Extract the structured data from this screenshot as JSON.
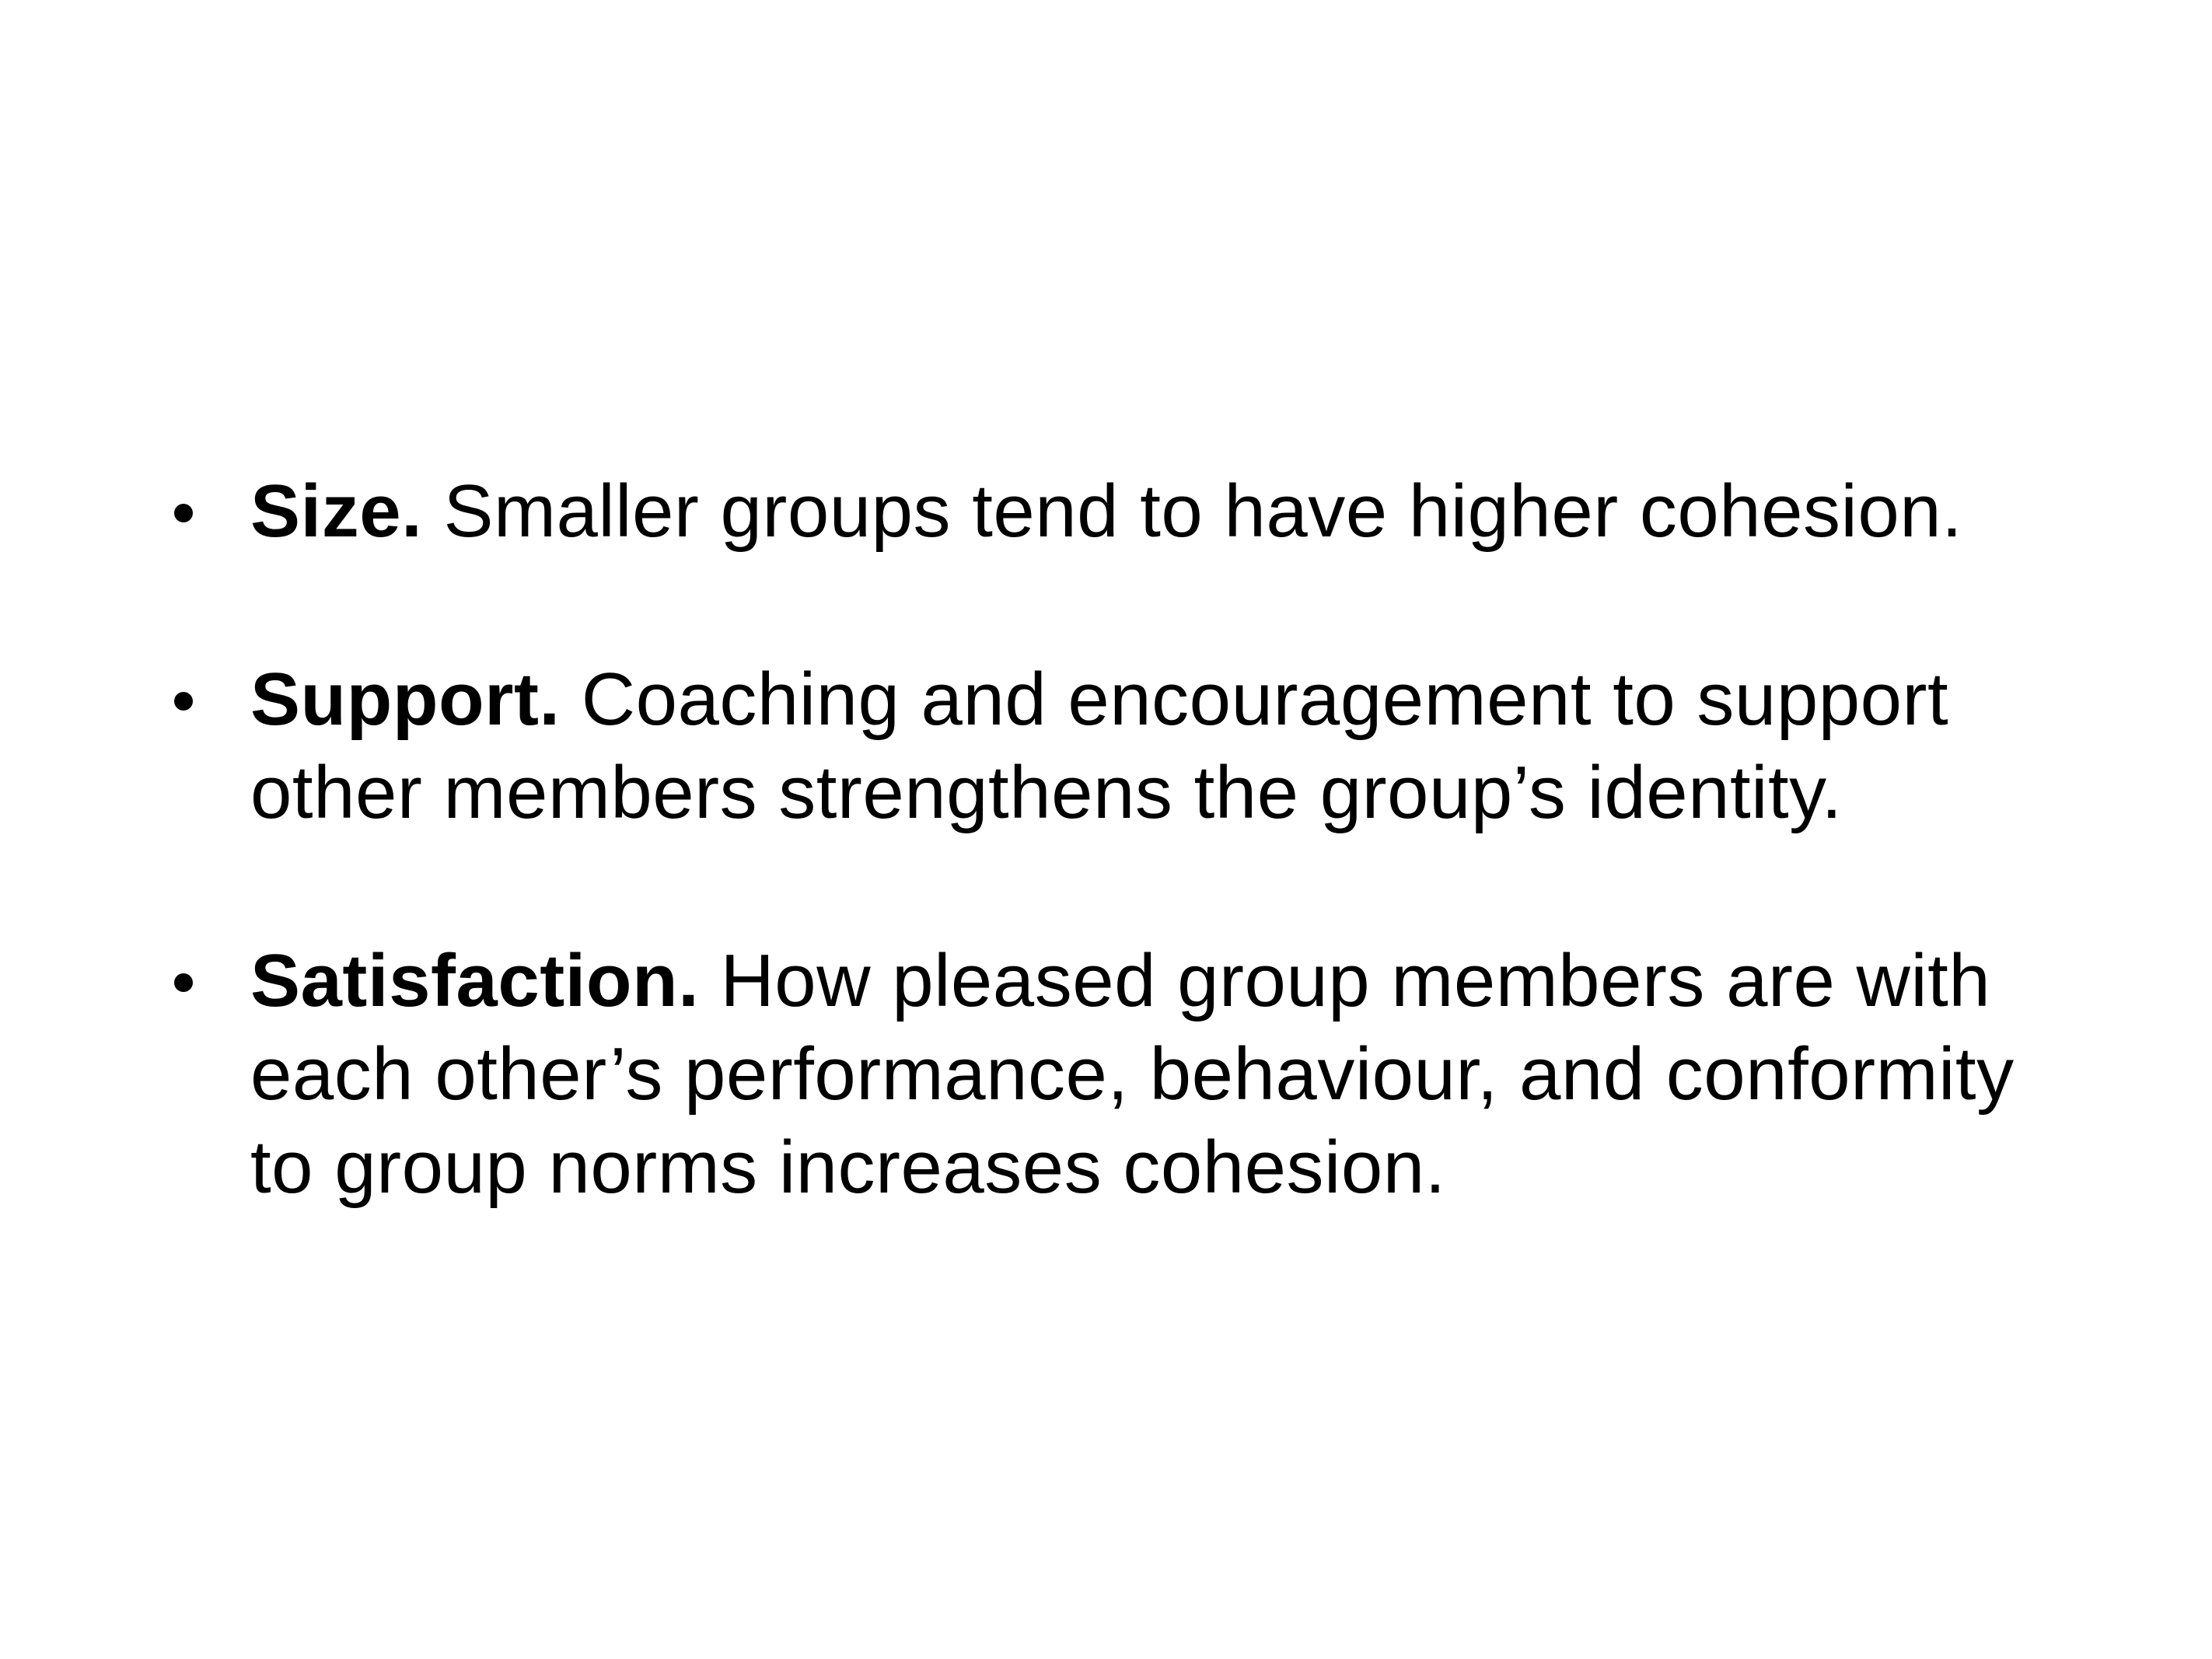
{
  "bullets": [
    {
      "term": "Size.",
      "text": "Smaller groups tend to have higher cohesion."
    },
    {
      "term": "Support.",
      "text": "Coaching and encouragement to support other members strengthens the group’s identity."
    },
    {
      "term": "Satisfaction.",
      "text": "How pleased group members are with each other’s performance, behaviour, and conformity to group norms increases cohesion."
    }
  ]
}
